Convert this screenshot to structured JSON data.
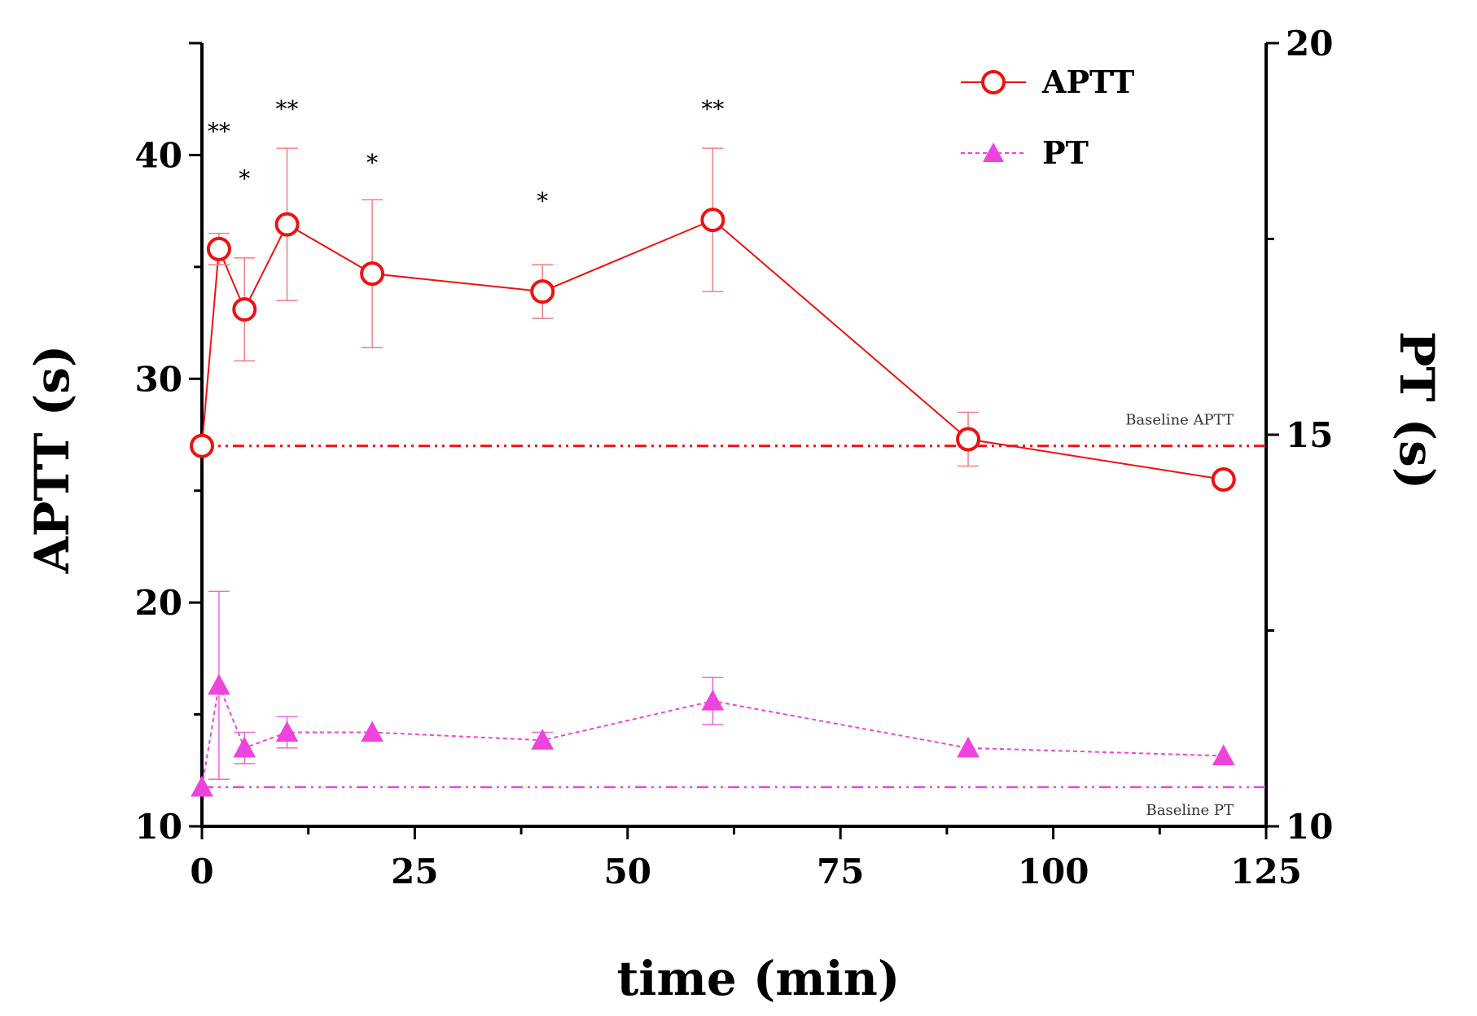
{
  "chart_data": {
    "type": "line",
    "xlabel": "time (min)",
    "ylabel_left": "APTT (s)",
    "ylabel_right": "PT (s)",
    "xlim": [
      0,
      125
    ],
    "ylim_left": [
      10,
      45
    ],
    "ylim_right": [
      10,
      20
    ],
    "x_ticks": [
      0,
      25,
      50,
      75,
      100,
      125
    ],
    "y_left_ticks": [
      10,
      20,
      30,
      40
    ],
    "y_right_ticks": [
      10,
      15,
      20
    ],
    "legend_position": "top-right",
    "series": [
      {
        "name": "APTT",
        "axis": "left",
        "color": "#ee1111",
        "marker": "open-circle",
        "line": "solid",
        "x": [
          0,
          2,
          5,
          10,
          20,
          40,
          60,
          90,
          120
        ],
        "y": [
          27.0,
          35.8,
          33.1,
          36.9,
          34.7,
          33.9,
          37.1,
          27.3,
          25.5
        ],
        "err": [
          0,
          0.7,
          2.3,
          3.4,
          3.3,
          1.2,
          3.2,
          1.2,
          0
        ]
      },
      {
        "name": "PT",
        "axis": "right",
        "color": "#ee44dd",
        "marker": "filled-triangle",
        "line": "dotted",
        "x": [
          0,
          2,
          5,
          10,
          20,
          40,
          60,
          90,
          120
        ],
        "y": [
          10.5,
          11.8,
          11.0,
          11.2,
          11.2,
          11.1,
          11.6,
          11.0,
          10.9
        ],
        "err": [
          0,
          1.2,
          0.2,
          0.2,
          0,
          0.1,
          0.3,
          0,
          0
        ]
      }
    ],
    "baselines": [
      {
        "label": "Baseline APTT",
        "value": 27.0,
        "axis": "left",
        "color": "#ee1111"
      },
      {
        "label": "Baseline PT",
        "value": 10.5,
        "axis": "right",
        "color": "#ee44dd"
      }
    ],
    "significance": [
      {
        "x": 2,
        "label": "**",
        "y": 40.7
      },
      {
        "x": 5,
        "label": "*",
        "y": 38.6
      },
      {
        "x": 10,
        "label": "**",
        "y": 41.7
      },
      {
        "x": 20,
        "label": "*",
        "y": 39.3
      },
      {
        "x": 40,
        "label": "*",
        "y": 37.6
      },
      {
        "x": 60,
        "label": "**",
        "y": 41.7
      }
    ]
  }
}
